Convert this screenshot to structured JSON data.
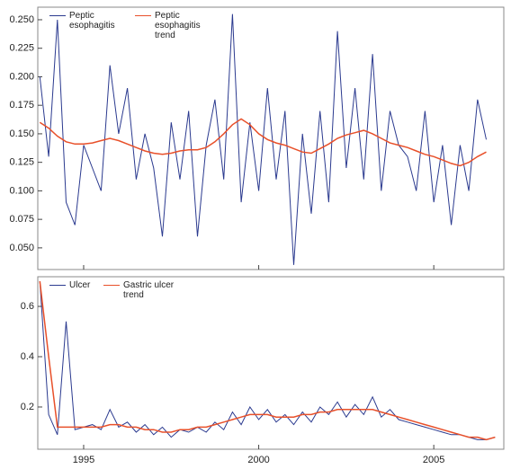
{
  "chart_data": [
    {
      "type": "line",
      "x": [
        1993.75,
        1994.0,
        1994.25,
        1994.5,
        1994.75,
        1995.0,
        1995.25,
        1995.5,
        1995.75,
        1996.0,
        1996.25,
        1996.5,
        1996.75,
        1997.0,
        1997.25,
        1997.5,
        1997.75,
        1998.0,
        1998.25,
        1998.5,
        1998.75,
        1999.0,
        1999.25,
        1999.5,
        1999.75,
        2000.0,
        2000.25,
        2000.5,
        2000.75,
        2001.0,
        2001.25,
        2001.5,
        2001.75,
        2002.0,
        2002.25,
        2002.5,
        2002.75,
        2003.0,
        2003.25,
        2003.5,
        2003.75,
        2004.0,
        2004.25,
        2004.5,
        2004.75,
        2005.0,
        2005.25,
        2005.5,
        2005.75,
        2006.0,
        2006.25,
        2006.5
      ],
      "series": [
        {
          "name": "Peptic esophagitis",
          "color": "#2b3a8f",
          "values": [
            0.2,
            0.13,
            0.25,
            0.09,
            0.07,
            0.14,
            0.12,
            0.1,
            0.21,
            0.15,
            0.19,
            0.11,
            0.15,
            0.12,
            0.06,
            0.16,
            0.11,
            0.17,
            0.06,
            0.14,
            0.18,
            0.11,
            0.255,
            0.09,
            0.16,
            0.1,
            0.19,
            0.11,
            0.17,
            0.035,
            0.15,
            0.08,
            0.17,
            0.09,
            0.24,
            0.12,
            0.19,
            0.11,
            0.22,
            0.1,
            0.17,
            0.14,
            0.13,
            0.1,
            0.17,
            0.09,
            0.14,
            0.07,
            0.14,
            0.1,
            0.18,
            0.145
          ]
        },
        {
          "name": "Peptic esophagitis trend",
          "color": "#e8502a",
          "values": [
            0.16,
            0.155,
            0.148,
            0.143,
            0.141,
            0.141,
            0.142,
            0.144,
            0.146,
            0.144,
            0.141,
            0.138,
            0.135,
            0.133,
            0.132,
            0.133,
            0.135,
            0.136,
            0.136,
            0.138,
            0.143,
            0.15,
            0.158,
            0.163,
            0.158,
            0.15,
            0.145,
            0.142,
            0.14,
            0.137,
            0.134,
            0.133,
            0.137,
            0.141,
            0.146,
            0.149,
            0.151,
            0.153,
            0.15,
            0.146,
            0.142,
            0.14,
            0.138,
            0.135,
            0.132,
            0.13,
            0.127,
            0.124,
            0.122,
            0.125,
            0.13,
            0.134
          ]
        }
      ],
      "xlim": [
        1993.69,
        2007.0
      ],
      "ylim": [
        0.031,
        0.261
      ],
      "yticks": [
        {
          "value": 0.05,
          "label": "0.050"
        },
        0.075,
        {
          "value": 0.1,
          "label": "0.100"
        },
        0.125,
        {
          "value": 0.15,
          "label": "0.150"
        },
        0.175,
        {
          "value": 0.2,
          "label": "0.200"
        },
        0.225,
        {
          "value": 0.25,
          "label": "0.250"
        }
      ]
    },
    {
      "type": "line",
      "x": [
        1993.75,
        1994.0,
        1994.25,
        1994.5,
        1994.75,
        1995.0,
        1995.25,
        1995.5,
        1995.75,
        1996.0,
        1996.25,
        1996.5,
        1996.75,
        1997.0,
        1997.25,
        1997.5,
        1997.75,
        1998.0,
        1998.25,
        1998.5,
        1998.75,
        1999.0,
        1999.25,
        1999.5,
        1999.75,
        2000.0,
        2000.25,
        2000.5,
        2000.75,
        2001.0,
        2001.25,
        2001.5,
        2001.75,
        2002.0,
        2002.25,
        2002.5,
        2002.75,
        2003.0,
        2003.25,
        2003.5,
        2003.75,
        2004.0,
        2004.25,
        2004.5,
        2004.75,
        2005.0,
        2005.25,
        2005.5,
        2005.75,
        2006.0,
        2006.25,
        2006.5,
        2006.75
      ],
      "series": [
        {
          "name": "Ulcer",
          "color": "#2b3a8f",
          "values": [
            0.7,
            0.17,
            0.09,
            0.54,
            0.11,
            0.12,
            0.13,
            0.11,
            0.19,
            0.12,
            0.14,
            0.1,
            0.13,
            0.09,
            0.12,
            0.08,
            0.11,
            0.1,
            0.12,
            0.1,
            0.14,
            0.11,
            0.18,
            0.13,
            0.2,
            0.15,
            0.19,
            0.14,
            0.17,
            0.13,
            0.18,
            0.14,
            0.2,
            0.17,
            0.22,
            0.16,
            0.21,
            0.17,
            0.24,
            0.16,
            0.19,
            0.15,
            0.14,
            0.13,
            0.12,
            0.11,
            0.1,
            0.09,
            0.09,
            0.08,
            0.07,
            0.07,
            0.08
          ]
        },
        {
          "name": "Gastric ulcer trend",
          "color": "#e8502a",
          "values": [
            0.7,
            0.4,
            0.12,
            0.12,
            0.12,
            0.12,
            0.12,
            0.12,
            0.13,
            0.13,
            0.12,
            0.12,
            0.11,
            0.11,
            0.1,
            0.1,
            0.11,
            0.11,
            0.12,
            0.12,
            0.13,
            0.14,
            0.15,
            0.16,
            0.17,
            0.17,
            0.17,
            0.16,
            0.16,
            0.16,
            0.17,
            0.17,
            0.18,
            0.18,
            0.19,
            0.19,
            0.19,
            0.19,
            0.19,
            0.18,
            0.17,
            0.16,
            0.15,
            0.14,
            0.13,
            0.12,
            0.11,
            0.1,
            0.09,
            0.08,
            0.08,
            0.07,
            0.08
          ]
        }
      ],
      "xlim": [
        1993.69,
        2007.0
      ],
      "ylim": [
        0.032,
        0.718
      ],
      "yticks": [
        0.2,
        0.4,
        0.6
      ],
      "xticks": [
        1995,
        2000,
        2005
      ]
    }
  ]
}
